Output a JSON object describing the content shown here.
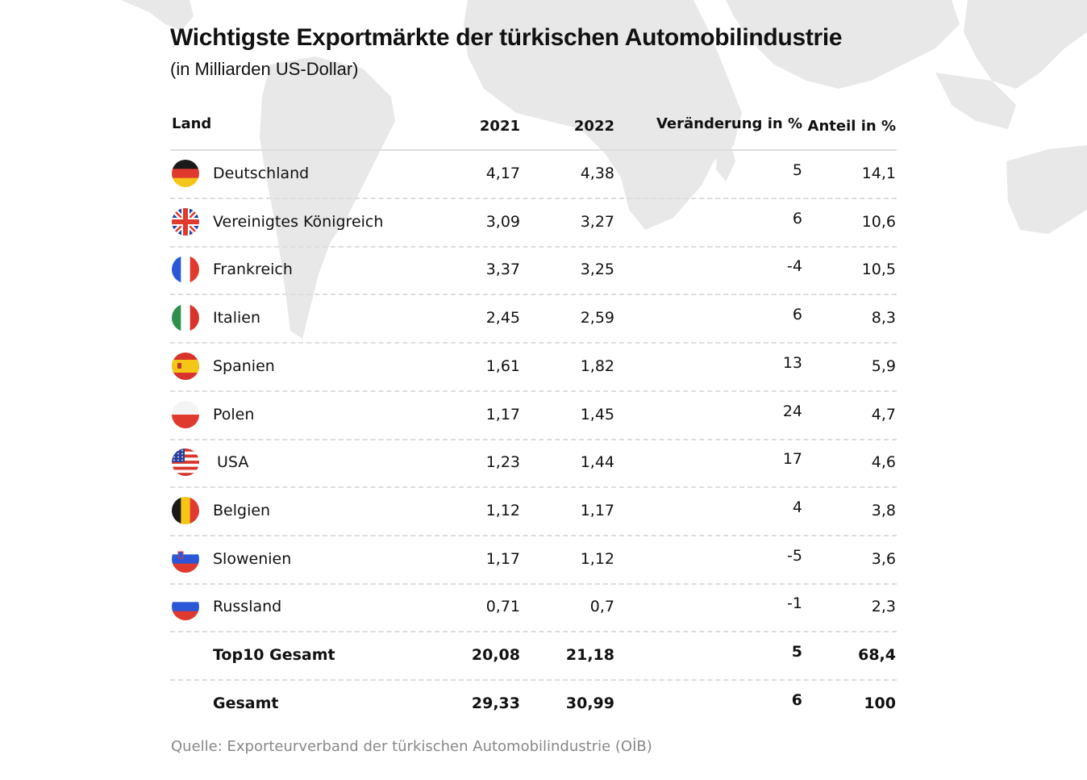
{
  "title": "Wichtigste Exportmärkte der türkischen Automobilindustrie",
  "subtitle": "(in Milliarden US-Dollar)",
  "source": "Quelle: Exporteurverband der türkischen Automobilindustrie (OİB)",
  "colors": {
    "map": "#e6e6e6",
    "separator": "#dddddd",
    "source_text": "#888888"
  },
  "chart_data": {
    "type": "table",
    "title": "Wichtigste Exportmärkte der türkischen Automobilindustrie",
    "subtitle": "(in Milliarden US-Dollar)",
    "columns": [
      "Land",
      "2021",
      "2022",
      "Veränderung in %",
      "Anteil in %"
    ],
    "rows": [
      {
        "land": "Deutschland",
        "flag": "germany-flag-icon",
        "y2021": "4,17",
        "y2022": "4,38",
        "change": "5",
        "share": "14,1"
      },
      {
        "land": "Vereinigtes Königreich",
        "flag": "uk-flag-icon",
        "y2021": "3,09",
        "y2022": "3,27",
        "change": "6",
        "share": "10,6"
      },
      {
        "land": "Frankreich",
        "flag": "france-flag-icon",
        "y2021": "3,37",
        "y2022": "3,25",
        "change": "-4",
        "share": "10,5"
      },
      {
        "land": "Italien",
        "flag": "italy-flag-icon",
        "y2021": "2,45",
        "y2022": "2,59",
        "change": "6",
        "share": "8,3"
      },
      {
        "land": "Spanien",
        "flag": "spain-flag-icon",
        "y2021": "1,61",
        "y2022": "1,82",
        "change": "13",
        "share": "5,9"
      },
      {
        "land": "Polen",
        "flag": "poland-flag-icon",
        "y2021": "1,17",
        "y2022": "1,45",
        "change": "24",
        "share": "4,7"
      },
      {
        "land": "USA",
        "flag": "usa-flag-icon",
        "y2021": "1,23",
        "y2022": "1,44",
        "change": "17",
        "share": "4,6"
      },
      {
        "land": "Belgien",
        "flag": "belgium-flag-icon",
        "y2021": "1,12",
        "y2022": "1,17",
        "change": "4",
        "share": "3,8"
      },
      {
        "land": "Slowenien",
        "flag": "slovenia-flag-icon",
        "y2021": "1,17",
        "y2022": "1,12",
        "change": "-5",
        "share": "3,6"
      },
      {
        "land": "Russland",
        "flag": "russia-flag-icon",
        "y2021": "0,71",
        "y2022": "0,7",
        "change": "-1",
        "share": "2,3"
      }
    ],
    "totals": [
      {
        "land": "Top10 Gesamt",
        "y2021": "20,08",
        "y2022": "21,18",
        "change": "5",
        "share": "68,4"
      },
      {
        "land": "Gesamt",
        "y2021": "29,33",
        "y2022": "30,99",
        "change": "6",
        "share": "100"
      }
    ]
  }
}
